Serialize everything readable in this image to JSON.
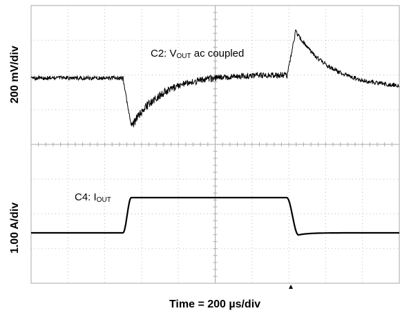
{
  "y_label_top": "200 mV/div",
  "y_label_bottom": "1.00 A/div",
  "x_label": "Time = 200 µs/div",
  "vout_label": {
    "prefix": "C2: V",
    "subscript": "OUT",
    "suffix": " ac coupled"
  },
  "iout_label": {
    "prefix": "C4: I",
    "subscript": "OUT"
  }
}
